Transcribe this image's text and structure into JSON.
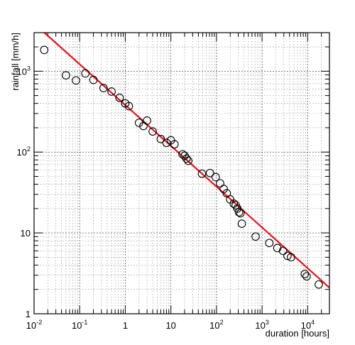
{
  "chart_data": {
    "type": "scatter",
    "title": "",
    "xlabel": "duration [hours]",
    "ylabel": "rainfall [mm/h]",
    "x_scale": "log",
    "y_scale": "log",
    "xlim": [
      0.01,
      30000
    ],
    "ylim": [
      1,
      3000
    ],
    "grid": true,
    "x_ticks": [
      {
        "base": "10",
        "exp": "-2"
      },
      {
        "base": "10",
        "exp": "-1"
      },
      {
        "base": "1",
        "exp": ""
      },
      {
        "base": "10",
        "exp": ""
      },
      {
        "base": "10",
        "exp": "2"
      },
      {
        "base": "10",
        "exp": "3"
      },
      {
        "base": "10",
        "exp": "4"
      }
    ],
    "y_ticks": [
      {
        "base": "1",
        "exp": ""
      },
      {
        "base": "10",
        "exp": ""
      },
      {
        "base": "10",
        "exp": "2"
      },
      {
        "base": "10",
        "exp": "3"
      }
    ],
    "series": [
      {
        "kind": "points",
        "marker": "open-circle",
        "x": [
          0.0167,
          0.05,
          0.083,
          0.133,
          0.2,
          0.333,
          0.5,
          0.75,
          1,
          1.2,
          2,
          2.5,
          3,
          4,
          6,
          8,
          10,
          12,
          18,
          20,
          22,
          24,
          48,
          72,
          96,
          120,
          144,
          168,
          200,
          240,
          264,
          288,
          312,
          336,
          360,
          720,
          1440,
          2160,
          2880,
          3600,
          4320,
          8640,
          9500,
          17500
        ],
        "y": [
          1830,
          890,
          770,
          940,
          780,
          620,
          560,
          470,
          400,
          370,
          230,
          210,
          245,
          180,
          145,
          130,
          140,
          125,
          94,
          90,
          83,
          78,
          54,
          55,
          49,
          41,
          35,
          31,
          26,
          23,
          22,
          20,
          18,
          17.5,
          13,
          9,
          7.5,
          6.5,
          6,
          5.2,
          5,
          3.1,
          2.9,
          2.3
        ]
      },
      {
        "kind": "fit-line",
        "color": "#e8141c",
        "x": [
          0.0168,
          30000
        ],
        "y": [
          3000,
          2.1
        ]
      }
    ]
  }
}
